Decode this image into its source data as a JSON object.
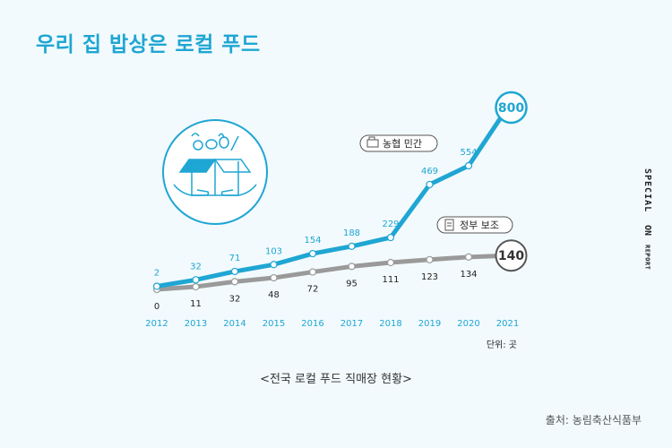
{
  "title": "우리 집 밥상은 로컬 푸드",
  "caption": "<전국 로컬 푸드 직매장 현황>",
  "source": "출처: 농림축산식품부",
  "side_tab": {
    "part1": "SPECIAL",
    "part2": "ON",
    "part3": "REPORT"
  },
  "colors": {
    "accent": "#1fa6d3",
    "gray": "#9a9a9a",
    "background": "#f2fafd"
  },
  "chart_data": {
    "type": "line",
    "x": [
      "2012",
      "2013",
      "2014",
      "2015",
      "2016",
      "2017",
      "2018",
      "2019",
      "2020",
      "2021"
    ],
    "series": [
      {
        "name": "농협 민간",
        "values": [
          2,
          32,
          71,
          103,
          154,
          188,
          229,
          469,
          554,
          800
        ],
        "color": "#1fa6d3",
        "icon": "cash-register-icon"
      },
      {
        "name": "정부 보조",
        "values": [
          0,
          11,
          32,
          48,
          72,
          95,
          111,
          123,
          134,
          140
        ],
        "color": "#9a9a9a",
        "icon": "document-icon"
      }
    ],
    "unit_label": "단위: 곳",
    "grid": false,
    "illustration": "box-of-groceries-held-by-hands-icon"
  }
}
